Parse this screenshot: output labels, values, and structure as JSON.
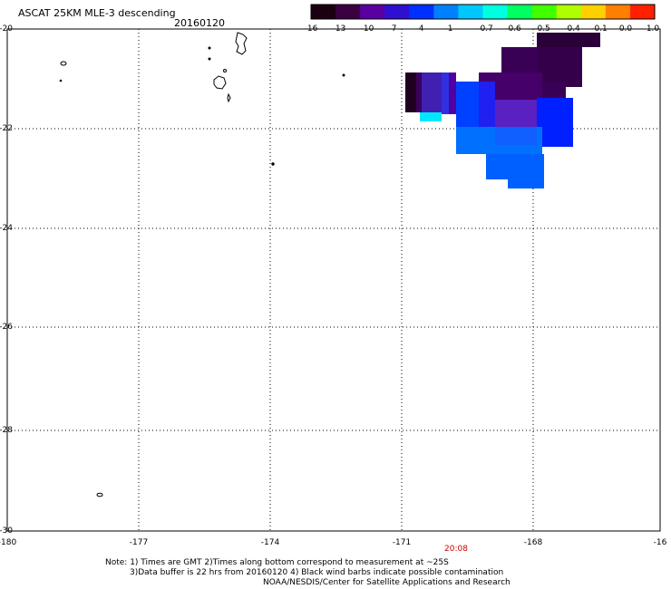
{
  "header": {
    "title": "ASCAT 25KM MLE-3 descending",
    "date": "20160120"
  },
  "colorbar": {
    "labels": [
      "-16",
      "-13",
      "-10",
      "-7",
      "-4",
      "-1",
      "-0.7",
      "-0.6",
      "-0.5",
      "-0.4",
      "-0.1",
      "0.0",
      "1.0"
    ],
    "colors": [
      "#1a0010",
      "#3a0040",
      "#5a00a0",
      "#3010d0",
      "#0030ff",
      "#0080ff",
      "#00c8ff",
      "#00ffe0",
      "#00ff60",
      "#40ff00",
      "#b0ff00",
      "#ffd000",
      "#ff8000",
      "#ff2000"
    ]
  },
  "axes": {
    "y_labels": [
      "-20",
      "-22",
      "-24",
      "-26",
      "-28",
      "-30"
    ],
    "x_labels": [
      "-180",
      "-177",
      "-174",
      "-171",
      "-168",
      "-16"
    ],
    "time_label": "20:08"
  },
  "notes": {
    "line1": "Note: 1) Times are GMT 2)Times along bottom correspond to measurement at ~25S",
    "line2": "3)Data buffer is 22 hrs from 20160120 4) Black wind barbs indicate possible contamination",
    "line3": "NOAA/NESDIS/Center for Satellite Applications and Research"
  }
}
